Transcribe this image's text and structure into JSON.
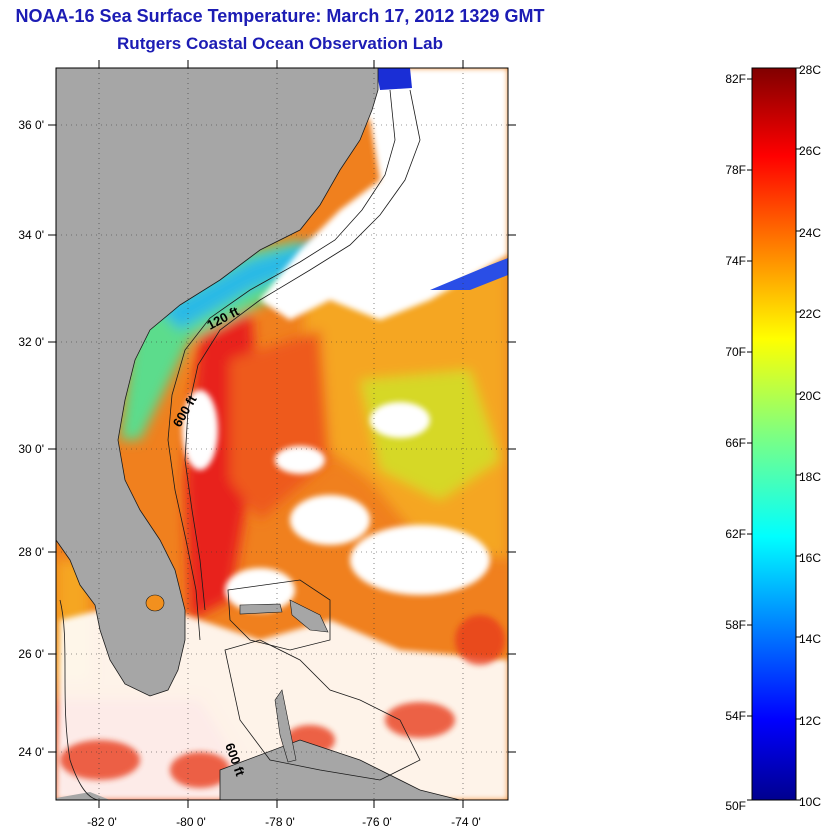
{
  "title": {
    "line1": "NOAA-16 Sea Surface Temperature:  March 17, 2012 1329 GMT",
    "line2": "Rutgers Coastal Ocean Observation Lab"
  },
  "map": {
    "lat_ticks": [
      "36 0'",
      "34 0'",
      "32 0'",
      "30 0'",
      "28 0'",
      "26 0'",
      "24 0'"
    ],
    "lon_ticks": [
      "-82 0'",
      "-80 0'",
      "-78 0'",
      "-76 0'",
      "-74 0'"
    ],
    "contour_labels": [
      "120 ft",
      "600 ft",
      "600 ft"
    ],
    "colors": {
      "land": "#a6a6a6",
      "cloud": "#ffffff",
      "coast": "#1a1a1a"
    }
  },
  "colorbar": {
    "fahrenheit": [
      "82F",
      "78F",
      "74F",
      "70F",
      "66F",
      "62F",
      "58F",
      "54F",
      "50F"
    ],
    "celsius": [
      "28C",
      "26C",
      "24C",
      "22C",
      "20C",
      "18C",
      "16C",
      "14C",
      "12C",
      "10C"
    ],
    "range_c": [
      10,
      28
    ],
    "palette": "jet"
  }
}
